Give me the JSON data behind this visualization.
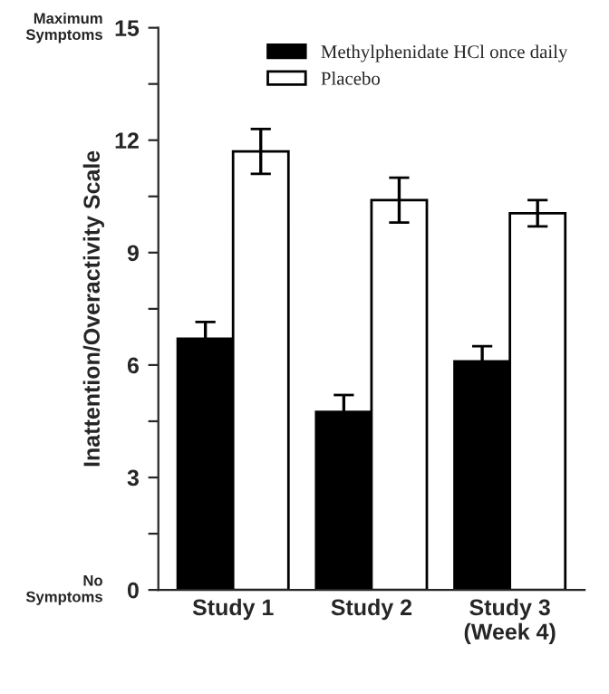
{
  "chart_data": {
    "type": "bar",
    "categories": [
      "Study 1",
      "Study 2",
      "Study 3\n(Week 4)"
    ],
    "ylabel": "Inattention/Overactivity Scale",
    "series": [
      {
        "name": "Methylphenidate HCl once daily",
        "color": "#000000",
        "values": [
          6.7,
          4.75,
          6.1
        ],
        "errors": [
          0.45,
          0.45,
          0.4
        ]
      },
      {
        "name": "Placebo",
        "color": "#ffffff",
        "values": [
          11.7,
          10.4,
          10.05
        ],
        "errors": [
          0.6,
          0.6,
          0.35
        ]
      }
    ],
    "ylim": [
      0,
      15
    ],
    "yticks": [
      0,
      {
        "value": 1.5,
        "label": null
      },
      3,
      {
        "value": 4.5,
        "label": null
      },
      6,
      {
        "value": 7.5,
        "label": null
      },
      9,
      {
        "value": 10.5,
        "label": null
      },
      12,
      {
        "value": 13.5,
        "label": null
      },
      15
    ],
    "annotations": [
      "Maximum\nSymptoms",
      "No\nSymptoms"
    ],
    "legend": "top right",
    "grid": false
  }
}
